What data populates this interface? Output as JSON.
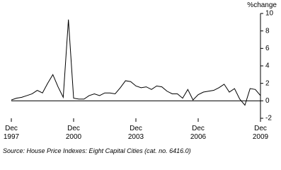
{
  "chart_data": {
    "type": "line",
    "y_label": "%change",
    "source": "Source: House Price Indexes: Eight Capital Cities (cat. no. 6416.0)",
    "categories": [
      "Dec 1997",
      null,
      null,
      null,
      null,
      null,
      null,
      null,
      null,
      null,
      null,
      null,
      "Dec 2000",
      null,
      null,
      null,
      null,
      null,
      null,
      null,
      null,
      null,
      null,
      null,
      "Dec 2003",
      null,
      null,
      null,
      null,
      null,
      null,
      null,
      null,
      null,
      null,
      null,
      "Dec 2006",
      null,
      null,
      null,
      null,
      null,
      null,
      null,
      null,
      null,
      null,
      null,
      "Dec 2009"
    ],
    "values": [
      0.1,
      0.3,
      0.4,
      0.6,
      0.8,
      1.2,
      0.9,
      2.0,
      3.0,
      1.6,
      0.4,
      9.3,
      0.3,
      0.2,
      0.2,
      0.6,
      0.8,
      0.6,
      0.9,
      0.9,
      0.8,
      1.5,
      2.3,
      2.2,
      1.7,
      1.5,
      1.6,
      1.3,
      1.7,
      1.6,
      1.1,
      0.8,
      0.8,
      0.3,
      1.3,
      0.1,
      0.7,
      1.0,
      1.1,
      1.2,
      1.5,
      1.9,
      1.0,
      1.4,
      0.2,
      -0.5,
      1.4,
      1.3,
      0.6
    ],
    "color": "#000000",
    "ylim": [
      -2,
      10
    ],
    "yticks": [
      -2,
      0,
      2,
      4,
      6,
      8,
      10
    ],
    "y_axis_side": "right"
  }
}
